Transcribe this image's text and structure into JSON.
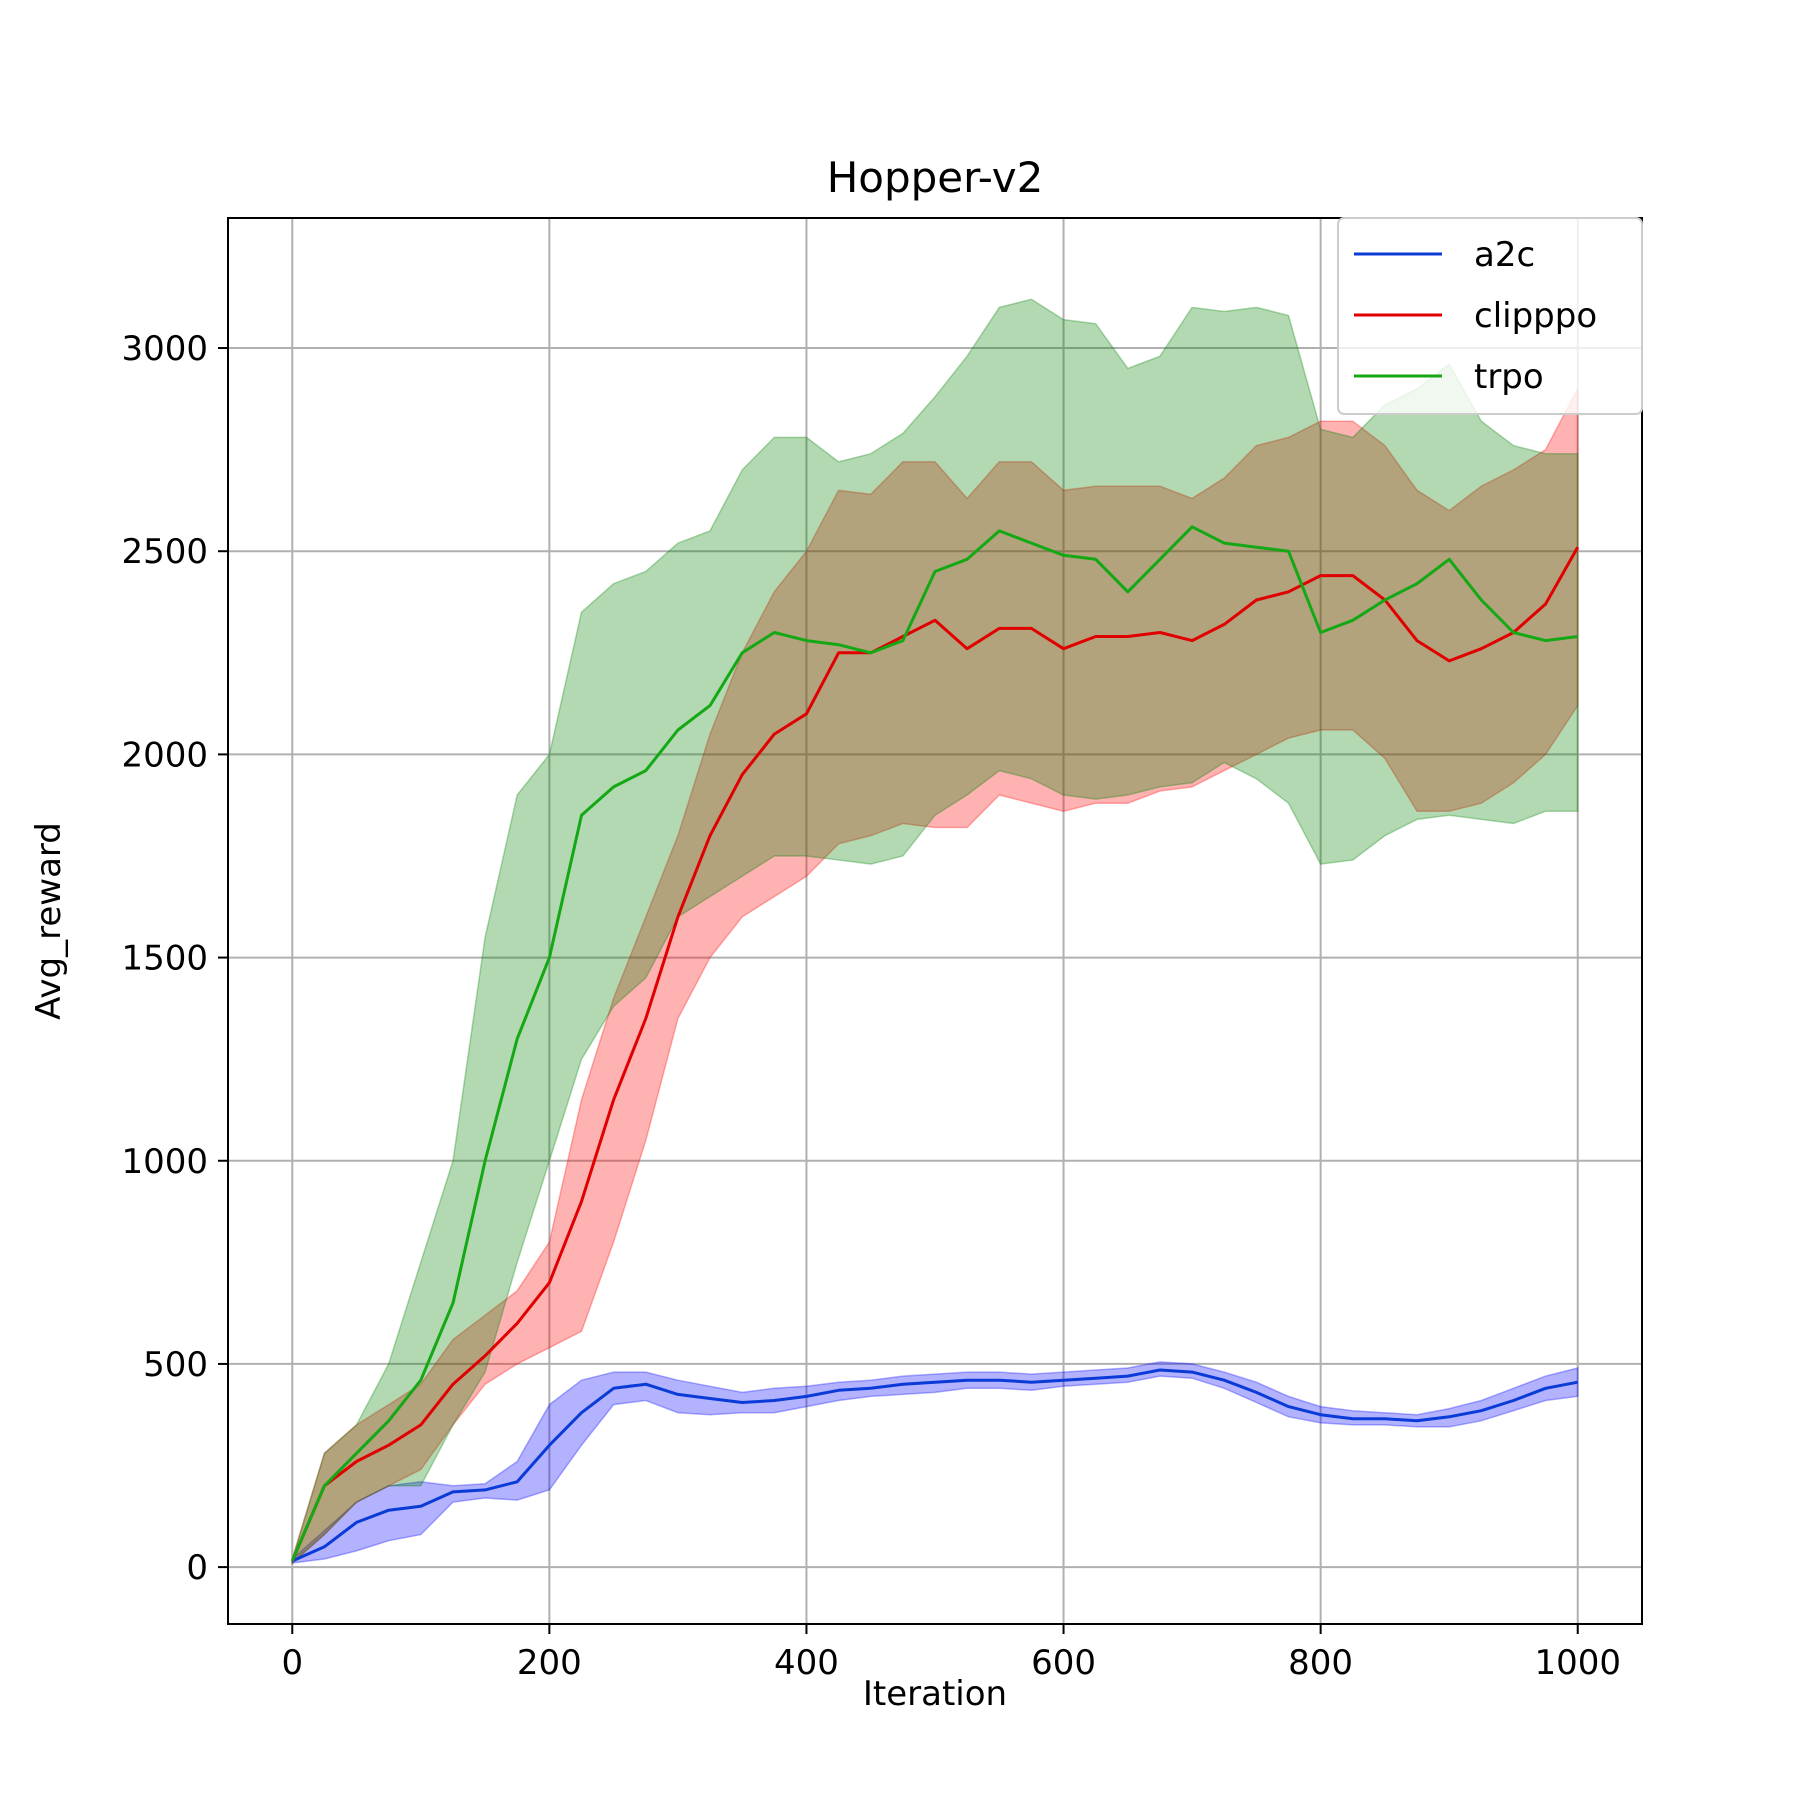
{
  "chart_data": {
    "type": "line",
    "title": "Hopper-v2",
    "xlabel": "Iteration",
    "ylabel": "Avg_reward",
    "xlim": [
      -50,
      1050
    ],
    "ylim": [
      -140,
      3320
    ],
    "xticks": [
      0,
      200,
      400,
      600,
      800,
      1000
    ],
    "yticks": [
      0,
      500,
      1000,
      1500,
      2000,
      2500,
      3000
    ],
    "grid": true,
    "legend_position": "top-right",
    "series": [
      {
        "name": "a2c",
        "color": "#0b3bd6",
        "band_color": "#0000ff",
        "x": [
          0,
          25,
          50,
          75,
          100,
          125,
          150,
          175,
          200,
          225,
          250,
          275,
          300,
          325,
          350,
          375,
          400,
          425,
          450,
          475,
          500,
          525,
          550,
          575,
          600,
          625,
          650,
          675,
          700,
          725,
          750,
          775,
          800,
          825,
          850,
          875,
          900,
          925,
          950,
          975,
          1000
        ],
        "mean": [
          15,
          50,
          110,
          140,
          150,
          185,
          190,
          210,
          300,
          380,
          440,
          450,
          425,
          415,
          405,
          410,
          420,
          435,
          440,
          450,
          455,
          460,
          460,
          455,
          460,
          465,
          470,
          485,
          480,
          460,
          430,
          395,
          375,
          365,
          365,
          360,
          370,
          385,
          410,
          440,
          455
        ],
        "lower": [
          10,
          20,
          40,
          65,
          80,
          160,
          170,
          165,
          190,
          300,
          400,
          410,
          380,
          375,
          380,
          380,
          395,
          410,
          420,
          425,
          430,
          440,
          440,
          435,
          445,
          450,
          455,
          470,
          465,
          440,
          405,
          370,
          355,
          350,
          350,
          345,
          345,
          360,
          385,
          410,
          420
        ],
        "upper": [
          20,
          90,
          160,
          200,
          210,
          200,
          205,
          260,
          400,
          460,
          480,
          480,
          460,
          445,
          430,
          440,
          445,
          455,
          460,
          470,
          475,
          480,
          480,
          475,
          480,
          485,
          490,
          505,
          500,
          480,
          455,
          420,
          395,
          385,
          380,
          375,
          390,
          410,
          440,
          470,
          490
        ]
      },
      {
        "name": "clipppo",
        "color": "#e00000",
        "band_color": "#ff0000",
        "x": [
          0,
          25,
          50,
          75,
          100,
          125,
          150,
          175,
          200,
          225,
          250,
          275,
          300,
          325,
          350,
          375,
          400,
          425,
          450,
          475,
          500,
          525,
          550,
          575,
          600,
          625,
          650,
          675,
          700,
          725,
          750,
          775,
          800,
          825,
          850,
          875,
          900,
          925,
          950,
          975,
          1000
        ],
        "mean": [
          15,
          200,
          260,
          300,
          350,
          450,
          520,
          600,
          700,
          900,
          1150,
          1350,
          1600,
          1800,
          1950,
          2050,
          2100,
          2250,
          2250,
          2290,
          2330,
          2260,
          2310,
          2310,
          2260,
          2290,
          2290,
          2300,
          2280,
          2320,
          2380,
          2400,
          2440,
          2440,
          2380,
          2280,
          2230,
          2260,
          2300,
          2370,
          2510
        ],
        "lower": [
          10,
          80,
          160,
          200,
          240,
          350,
          450,
          500,
          540,
          580,
          800,
          1050,
          1350,
          1500,
          1600,
          1650,
          1700,
          1780,
          1800,
          1830,
          1820,
          1820,
          1900,
          1880,
          1860,
          1880,
          1880,
          1910,
          1920,
          1960,
          2000,
          2040,
          2060,
          2060,
          1990,
          1860,
          1860,
          1880,
          1930,
          2000,
          2120
        ],
        "upper": [
          20,
          280,
          350,
          400,
          450,
          560,
          620,
          680,
          800,
          1150,
          1400,
          1600,
          1800,
          2050,
          2250,
          2400,
          2500,
          2650,
          2640,
          2720,
          2720,
          2630,
          2720,
          2720,
          2650,
          2660,
          2660,
          2660,
          2630,
          2680,
          2760,
          2780,
          2820,
          2820,
          2760,
          2650,
          2600,
          2660,
          2700,
          2750,
          2900
        ]
      },
      {
        "name": "trpo",
        "color": "#14a814",
        "band_color": "#008000",
        "x": [
          0,
          25,
          50,
          75,
          100,
          125,
          150,
          175,
          200,
          225,
          250,
          275,
          300,
          325,
          350,
          375,
          400,
          425,
          450,
          475,
          500,
          525,
          550,
          575,
          600,
          625,
          650,
          675,
          700,
          725,
          750,
          775,
          800,
          825,
          850,
          875,
          900,
          925,
          950,
          975,
          1000
        ],
        "mean": [
          15,
          200,
          280,
          360,
          460,
          650,
          1000,
          1300,
          1500,
          1850,
          1920,
          1960,
          2060,
          2120,
          2250,
          2300,
          2280,
          2270,
          2250,
          2280,
          2450,
          2480,
          2550,
          2520,
          2490,
          2480,
          2400,
          2480,
          2560,
          2520,
          2510,
          2500,
          2300,
          2330,
          2380,
          2420,
          2480,
          2380,
          2300,
          2280,
          2290
        ],
        "lower": [
          10,
          80,
          160,
          200,
          200,
          350,
          480,
          750,
          1000,
          1250,
          1380,
          1450,
          1600,
          1650,
          1700,
          1750,
          1750,
          1740,
          1730,
          1750,
          1850,
          1900,
          1960,
          1940,
          1900,
          1890,
          1900,
          1920,
          1930,
          1980,
          1940,
          1880,
          1730,
          1740,
          1800,
          1840,
          1850,
          1840,
          1830,
          1860,
          1860
        ],
        "upper": [
          20,
          280,
          350,
          500,
          750,
          1000,
          1550,
          1900,
          2000,
          2350,
          2420,
          2450,
          2520,
          2550,
          2700,
          2780,
          2780,
          2720,
          2740,
          2790,
          2880,
          2980,
          3100,
          3120,
          3070,
          3060,
          2950,
          2980,
          3100,
          3090,
          3100,
          3080,
          2800,
          2780,
          2860,
          2900,
          2960,
          2820,
          2760,
          2740,
          2740
        ]
      }
    ]
  }
}
